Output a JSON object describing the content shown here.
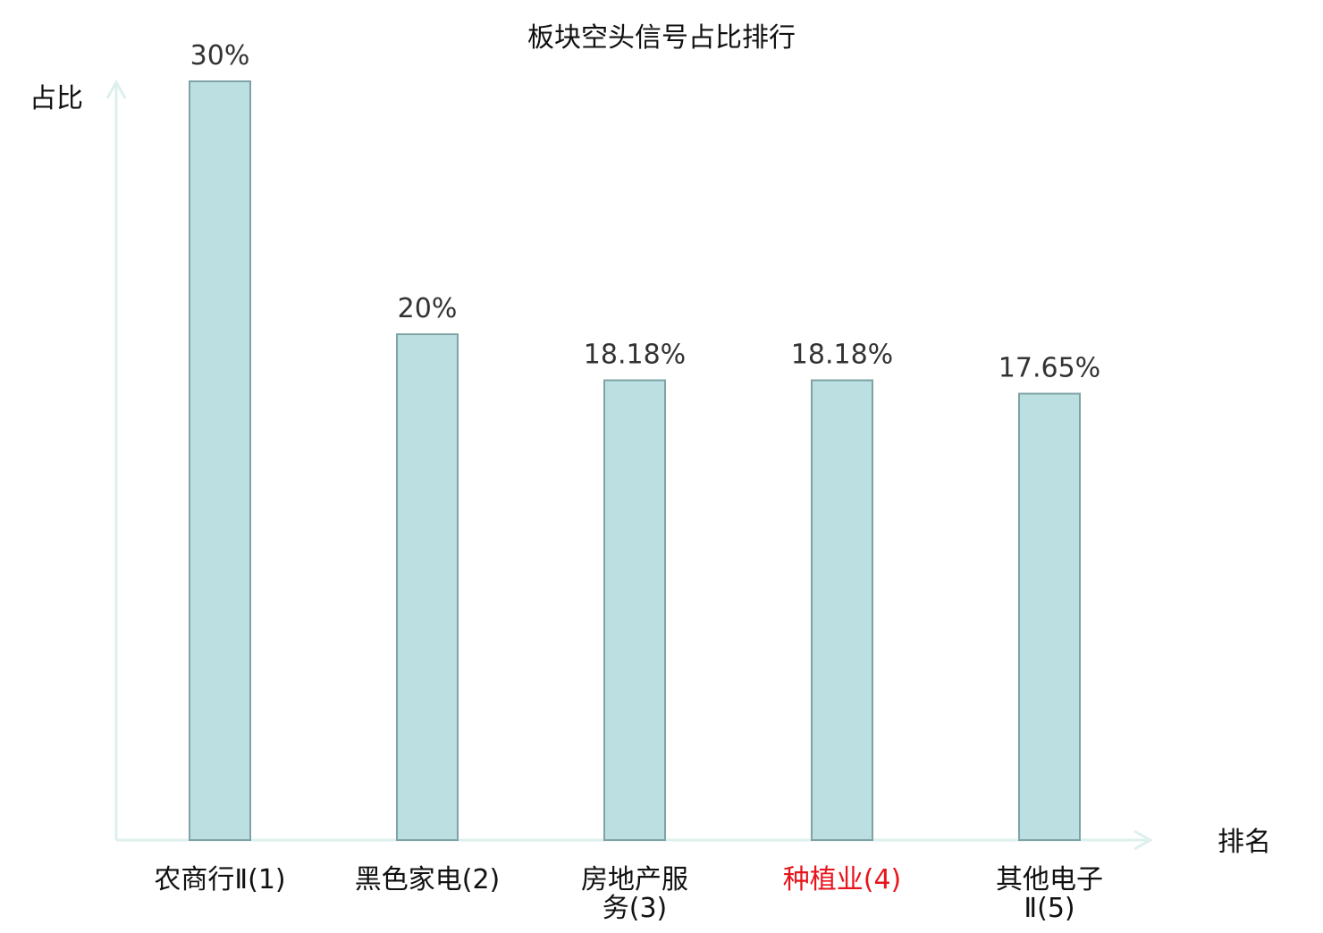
{
  "chart_data": {
    "type": "bar",
    "title": "板块空头信号占比排行",
    "ylabel": "占比",
    "xlabel": "排名",
    "ylim": [
      0,
      30
    ],
    "grid": false,
    "legend": "none",
    "categories": [
      [
        "农商行Ⅱ(1)"
      ],
      [
        "黑色家电(2)"
      ],
      [
        "房地产服",
        "务(3)"
      ],
      [
        "种植业(4)"
      ],
      [
        "其他电子",
        "Ⅱ(5)"
      ]
    ],
    "values": [
      30,
      20,
      18.18,
      18.18,
      17.65
    ],
    "value_labels": [
      "30%",
      "20%",
      "18.18%",
      "18.18%",
      "17.65%"
    ],
    "highlight_index": 3,
    "colors": {
      "bar_fill": "#bce0e2",
      "bar_stroke": "#7fa3a4",
      "axis": "#ddf0ee",
      "highlight_text": "#e8141c",
      "normal_text": "#111111"
    }
  }
}
